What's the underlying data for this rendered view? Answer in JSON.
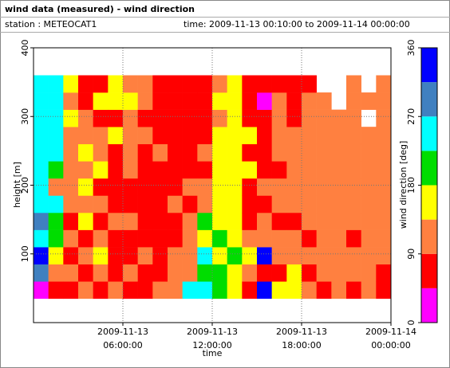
{
  "header": {
    "title": "wind data (measured) - wind direction",
    "station": "station : METEOCAT1",
    "time": "time: 2009-11-13 00:10:00 to 2009-11-14 00:00:00"
  },
  "chart_data": {
    "type": "heatmap",
    "xlabel": "time",
    "ylabel": "height [m]",
    "colorbar_label": "wind direction [deg]",
    "xlim": [
      0,
      24
    ],
    "ylim": [
      0,
      400
    ],
    "xticks": [
      {
        "value": 6,
        "label": "2009-11-13 06:00:00"
      },
      {
        "value": 12,
        "label": "2009-11-13 12:00:00"
      },
      {
        "value": 18,
        "label": "2009-11-13 18:00:00"
      },
      {
        "value": 24,
        "label": "2009-11-14 00:00:00"
      }
    ],
    "yticks": [
      100,
      200,
      300,
      400
    ],
    "grid": true,
    "x": [
      0,
      1,
      2,
      3,
      4,
      5,
      6,
      7,
      8,
      9,
      10,
      11,
      12,
      13,
      14,
      15,
      16,
      17,
      18,
      19,
      20,
      21,
      22,
      23
    ],
    "cell_width": 1,
    "y": [
      35,
      60,
      85,
      110,
      135,
      160,
      185,
      210,
      235,
      260,
      285,
      310,
      335
    ],
    "cell_height": 25,
    "values": [
      [
        20,
        290,
        340,
        250,
        290,
        250,
        250,
        250,
        250,
        250,
        250,
        250,
        250
      ],
      [
        70,
        110,
        160,
        200,
        200,
        250,
        110,
        200,
        250,
        250,
        250,
        250,
        250
      ],
      [
        70,
        110,
        70,
        110,
        70,
        110,
        110,
        110,
        110,
        110,
        160,
        110,
        160
      ],
      [
        110,
        70,
        110,
        70,
        160,
        110,
        160,
        110,
        160,
        110,
        110,
        70,
        70
      ],
      [
        70,
        110,
        160,
        110,
        70,
        110,
        70,
        160,
        110,
        110,
        70,
        160,
        70
      ],
      [
        110,
        70,
        70,
        70,
        110,
        70,
        70,
        70,
        70,
        160,
        70,
        160,
        160
      ],
      [
        70,
        110,
        70,
        70,
        110,
        70,
        70,
        110,
        110,
        110,
        110,
        160,
        110
      ],
      [
        70,
        70,
        110,
        70,
        70,
        70,
        70,
        70,
        70,
        110,
        70,
        110,
        110
      ],
      [
        110,
        70,
        70,
        70,
        70,
        70,
        70,
        70,
        110,
        70,
        70,
        70,
        70
      ],
      [
        110,
        110,
        110,
        70,
        70,
        110,
        70,
        70,
        70,
        70,
        70,
        70,
        70
      ],
      [
        250,
        110,
        110,
        110,
        110,
        70,
        110,
        70,
        70,
        70,
        70,
        70,
        70
      ],
      [
        250,
        200,
        250,
        160,
        200,
        110,
        110,
        70,
        110,
        70,
        70,
        70,
        70
      ],
      [
        200,
        200,
        160,
        200,
        160,
        160,
        160,
        160,
        160,
        160,
        110,
        160,
        110
      ],
      [
        160,
        160,
        200,
        160,
        160,
        160,
        160,
        160,
        160,
        160,
        160,
        160,
        160
      ],
      [
        70,
        110,
        160,
        110,
        70,
        70,
        70,
        160,
        70,
        160,
        70,
        70,
        70
      ],
      [
        340,
        70,
        340,
        110,
        110,
        70,
        110,
        70,
        70,
        70,
        70,
        20,
        70
      ],
      [
        160,
        70,
        110,
        110,
        70,
        110,
        110,
        70,
        110,
        110,
        110,
        110,
        70
      ],
      [
        160,
        160,
        110,
        110,
        70,
        110,
        110,
        110,
        110,
        110,
        70,
        70,
        70
      ],
      [
        110,
        70,
        110,
        70,
        110,
        110,
        110,
        110,
        110,
        110,
        110,
        110,
        70
      ],
      [
        70,
        110,
        110,
        110,
        110,
        110,
        110,
        110,
        110,
        110,
        110,
        110,
        null
      ],
      [
        110,
        110,
        110,
        110,
        110,
        110,
        110,
        110,
        110,
        110,
        110,
        null,
        null
      ],
      [
        70,
        110,
        110,
        70,
        110,
        110,
        110,
        110,
        110,
        110,
        110,
        110,
        110
      ],
      [
        110,
        110,
        110,
        110,
        110,
        110,
        110,
        110,
        110,
        110,
        null,
        110,
        null
      ],
      [
        70,
        70,
        110,
        110,
        110,
        110,
        110,
        110,
        110,
        110,
        110,
        110,
        110
      ]
    ],
    "clim": [
      0,
      360
    ],
    "cticks": [
      0,
      90,
      180,
      270,
      360
    ],
    "color_bounds": [
      0,
      45,
      90,
      135,
      180,
      225,
      270,
      315,
      360
    ],
    "colors": [
      "#ff00ff",
      "#ff0000",
      "#ff8040",
      "#ffff00",
      "#00dd00",
      "#00ffff",
      "#4080c0",
      "#0000ff"
    ]
  }
}
